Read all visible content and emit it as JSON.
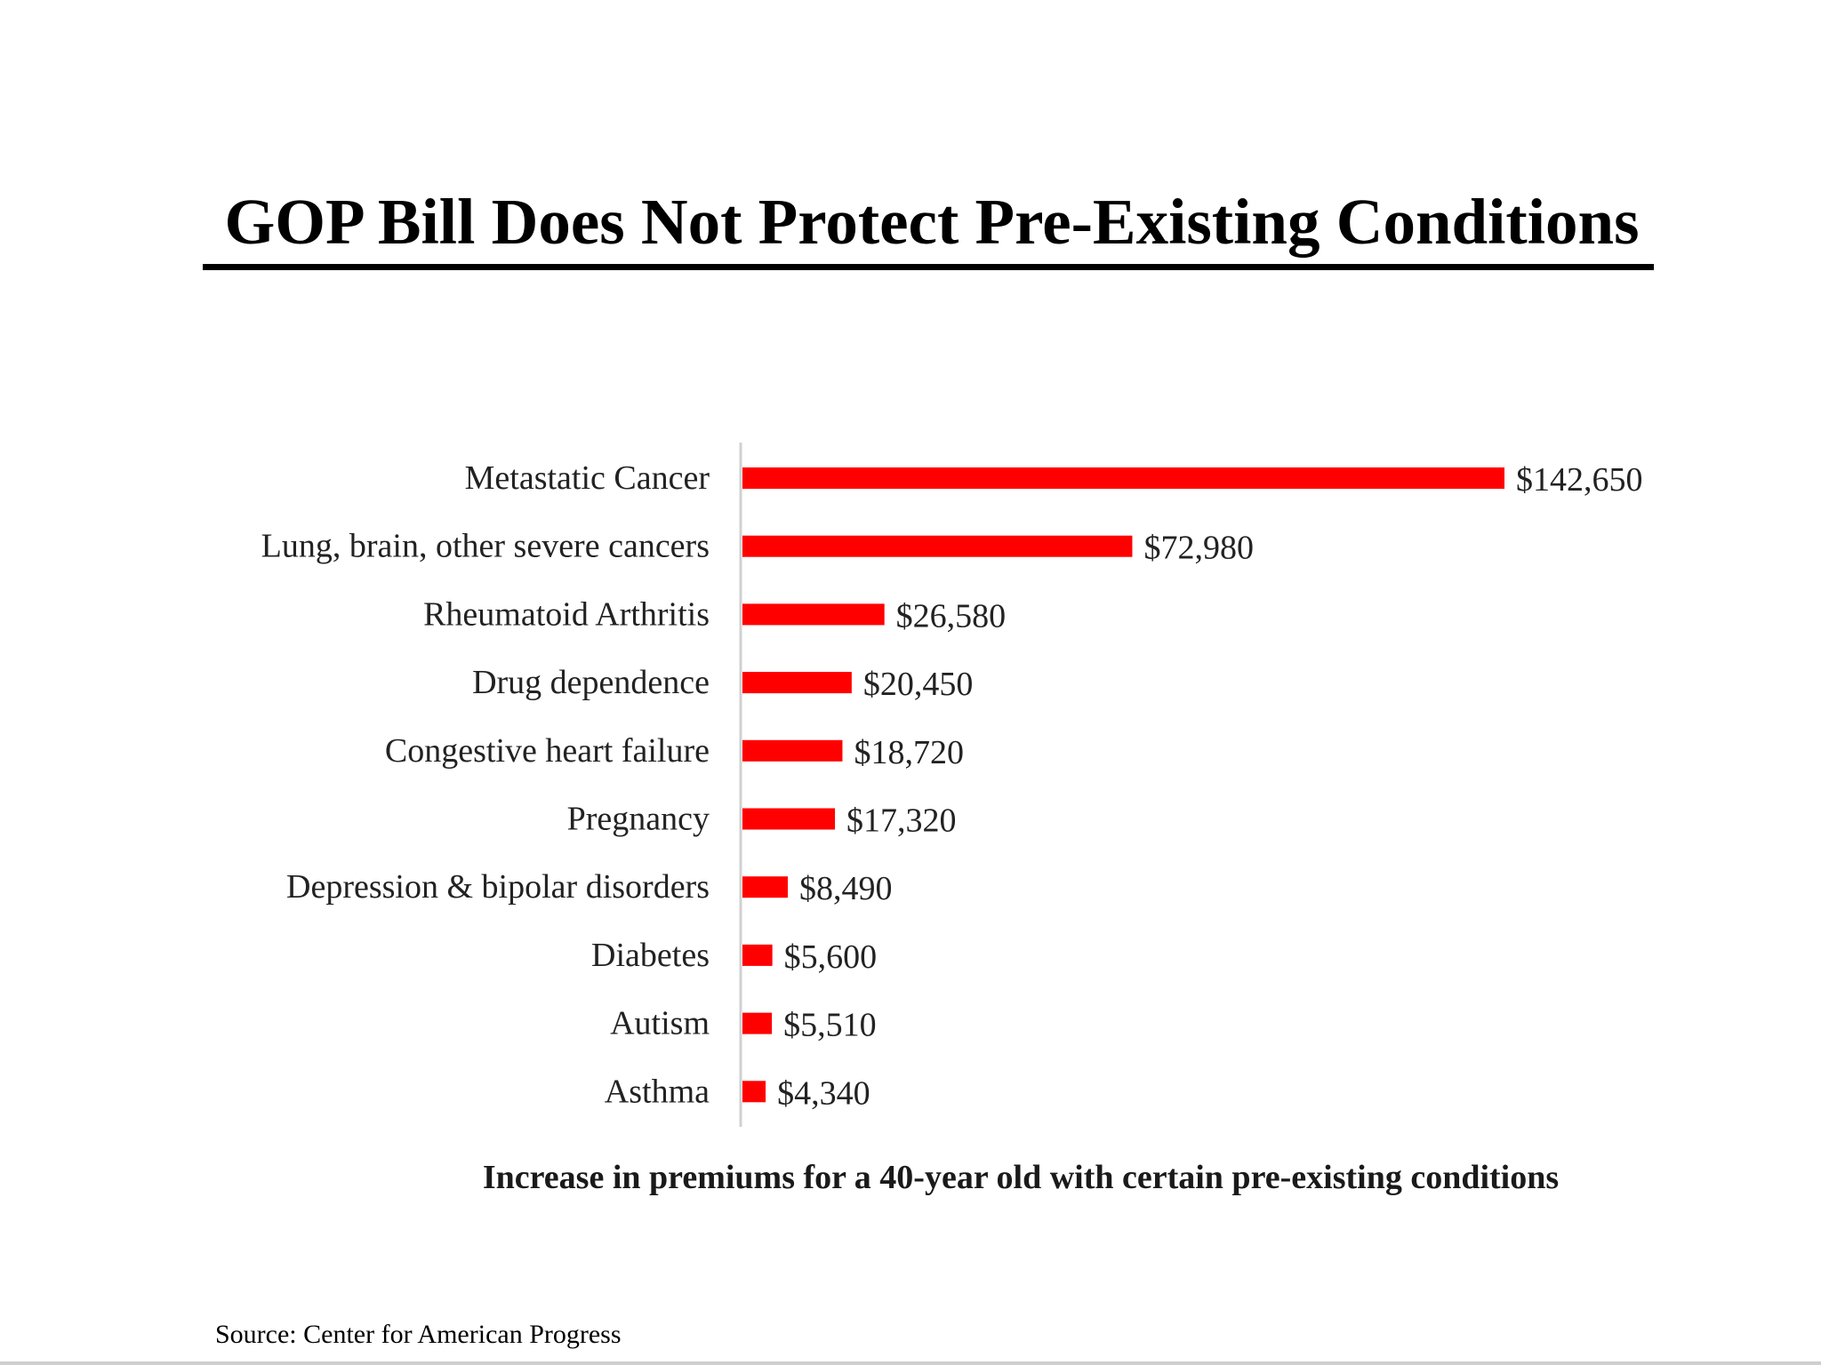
{
  "title": "GOP Bill Does Not Protect Pre-Existing Conditions",
  "chart_data": {
    "type": "bar",
    "orientation": "horizontal",
    "categories": [
      "Metastatic Cancer",
      "Lung, brain, other severe cancers",
      "Rheumatoid Arthritis",
      "Drug dependence",
      "Congestive heart failure",
      "Pregnancy",
      "Depression & bipolar disorders",
      "Diabetes",
      "Autism",
      "Asthma"
    ],
    "values": [
      142650,
      72980,
      26580,
      20450,
      18720,
      17320,
      8490,
      5600,
      5510,
      4340
    ],
    "data_labels": [
      "$142,650",
      "$72,980",
      "$26,580",
      "$20,450",
      "$18,720",
      "$17,320",
      "$8,490",
      "$5,600",
      "$5,510",
      "$4,340"
    ],
    "xlabel": "Increase in premiums for a 40-year old with certain pre-existing conditions",
    "ylabel": "",
    "xlim": [
      0,
      142650
    ],
    "bar_color": "#ff0000",
    "axis_color": "#d0d0d0",
    "grid": false
  },
  "source": "Source: Center for American Progress"
}
